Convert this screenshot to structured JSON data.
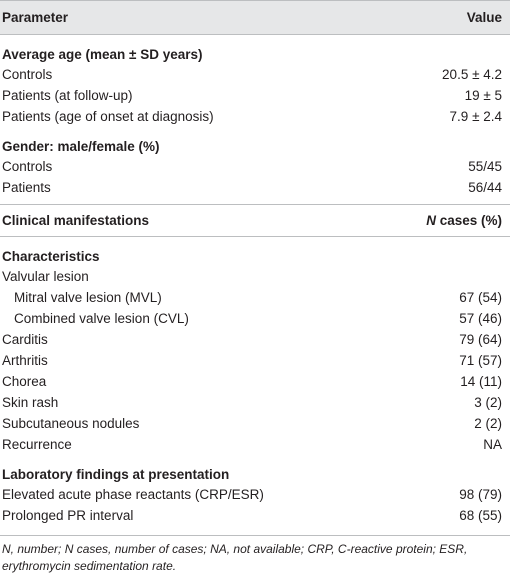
{
  "table": {
    "columns": [
      "Parameter",
      "Value"
    ],
    "sections": [
      {
        "title": "Average age (mean ± SD years)",
        "rows": [
          [
            "Controls",
            "20.5 ± 4.2"
          ],
          [
            "Patients (at follow-up)",
            "19 ± 5"
          ],
          [
            "Patients (age of onset at diagnosis)",
            "7.9 ± 2.4"
          ]
        ]
      },
      {
        "title": "Gender: male/female (%)",
        "rows": [
          [
            "Controls",
            "55/45"
          ],
          [
            "Patients",
            "56/44"
          ]
        ]
      }
    ],
    "subheader": {
      "label": "Clinical manifestations",
      "value": [
        "N",
        "cases (%)"
      ]
    },
    "sections2": [
      {
        "title": "Characteristics",
        "rows": [
          {
            "label": "Valvular lesion",
            "subrows": [
              [
                "Mitral valve lesion (MVL)",
                "67 (54)"
              ],
              [
                "Combined valve lesion (CVL)",
                "57 (46)"
              ]
            ]
          },
          [
            "Carditis",
            "79 (64)"
          ],
          [
            "Arthritis",
            "71 (57)"
          ],
          [
            "Chorea",
            "14 (11)"
          ],
          [
            "Skin rash",
            "3 (2)"
          ],
          [
            "Subcutaneous nodules",
            "2 (2)"
          ],
          [
            "Recurrence",
            "NA"
          ]
        ]
      },
      {
        "title": "Laboratory findings at presentation",
        "rows": [
          [
            "Elevated acute phase reactants (CRP/ESR)",
            "98 (79)"
          ],
          [
            "Prolonged PR interval",
            "68 (55)"
          ]
        ]
      }
    ],
    "footnote": "N, number; N cases, number of cases; NA, not available; CRP, C-reactive protein; ESR, erythromycin sedimentation rate."
  }
}
